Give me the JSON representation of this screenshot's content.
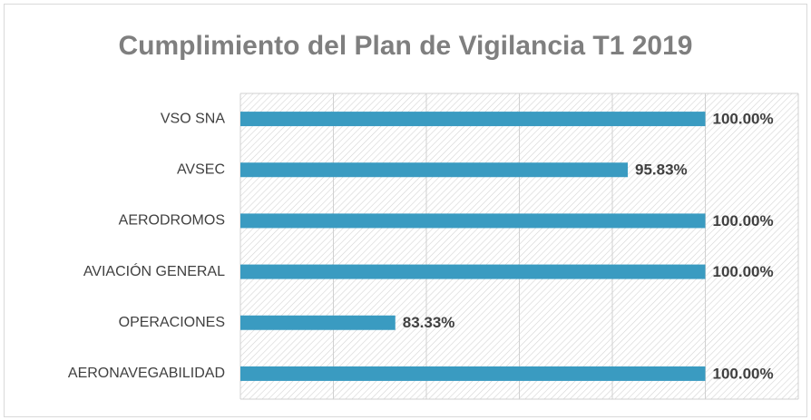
{
  "chart_data": {
    "type": "hbar",
    "title": "Cumplimiento del Plan de Vigilancia T1 2019",
    "categories": [
      "VSO SNA",
      "AVSEC",
      "AERODROMOS",
      "AVIACIÓN GENERAL",
      "OPERACIONES",
      "AERONAVEGABILIDAD"
    ],
    "values": [
      100,
      95.83,
      100,
      100,
      83.33,
      100
    ],
    "value_labels": [
      "100.00%",
      "95.83%",
      "100.00%",
      "100.00%",
      "83.33%",
      "100.00%"
    ],
    "color": "#3a9bc1",
    "xlim": [
      75,
      105
    ],
    "xticks": [
      75,
      80,
      85,
      90,
      95,
      100,
      105
    ],
    "grid": true
  }
}
